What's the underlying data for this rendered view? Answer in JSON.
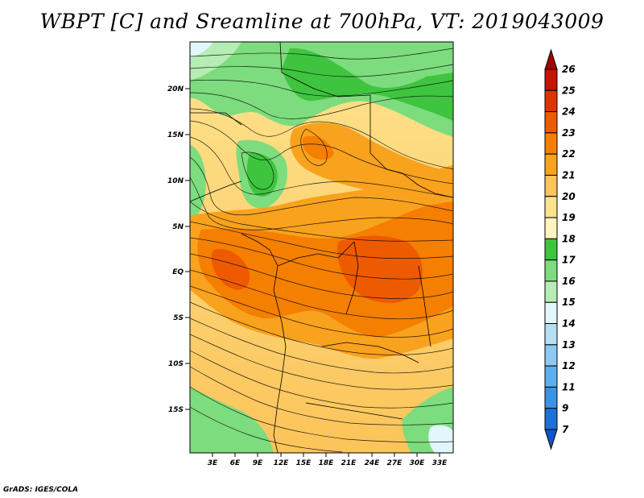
{
  "title": "WBPT [C] and Sreamline at 700hPa, VT: 2019043009",
  "credit": "GrADS: IGES/COLA",
  "map": {
    "lat_labels": [
      "20N",
      "15N",
      "10N",
      "5N",
      "EQ",
      "5S",
      "10S",
      "15S"
    ],
    "lon_labels": [
      "3E",
      "6E",
      "9E",
      "12E",
      "15E",
      "18E",
      "21E",
      "24E",
      "27E",
      "30E",
      "33E"
    ]
  },
  "colorbar": {
    "levels": [
      "26",
      "25",
      "24",
      "23",
      "22",
      "21",
      "20",
      "19",
      "18",
      "17",
      "16",
      "15",
      "14",
      "13",
      "12",
      "11",
      "9",
      "7"
    ],
    "colors": [
      "#a50000",
      "#c81400",
      "#e03200",
      "#ee5a00",
      "#f57f00",
      "#f9a21e",
      "#fcc45a",
      "#fde38e",
      "#fff4bd",
      "#3fc43f",
      "#7ddc7d",
      "#b5edb5",
      "#e2f7fb",
      "#b6dff6",
      "#8ccaf2",
      "#5eb0ec",
      "#3a92e4",
      "#1c71d8",
      "#0f56c8"
    ]
  }
}
